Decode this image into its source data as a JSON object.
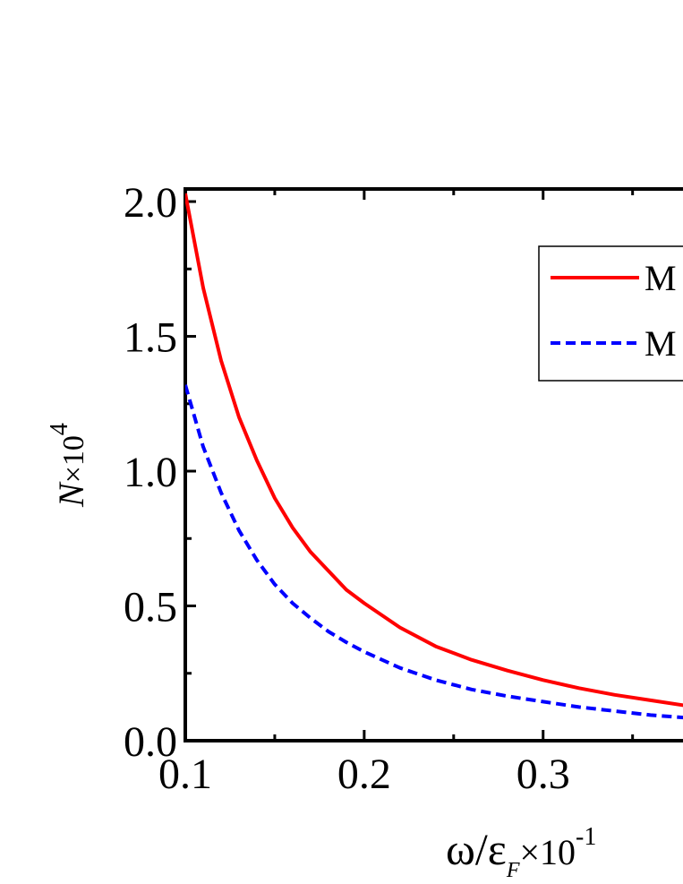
{
  "chart_data": {
    "type": "line",
    "xlabel": {
      "symbol": "ω/ε",
      "subscript": "F",
      "multiplier": "×10",
      "exponent": "-1"
    },
    "ylabel": {
      "symbol": "N",
      "multiplier": "×10",
      "exponent": "4"
    },
    "xlim": [
      0.1,
      0.38
    ],
    "ylim": [
      0.0,
      2.05
    ],
    "x_ticks": [
      {
        "value": 0.1,
        "label": "0.1"
      },
      {
        "value": 0.2,
        "label": "0.2"
      },
      {
        "value": 0.3,
        "label": "0.3"
      }
    ],
    "y_ticks": [
      {
        "value": 0.0,
        "label": "0.0"
      },
      {
        "value": 0.5,
        "label": "0.5"
      },
      {
        "value": 1.0,
        "label": "1.0"
      },
      {
        "value": 1.5,
        "label": "1.5"
      },
      {
        "value": 2.0,
        "label": "2.0"
      }
    ],
    "legend_position": "top-right",
    "series": [
      {
        "name": "M",
        "color": "#ff0000",
        "dash": "solid",
        "x": [
          0.1,
          0.11,
          0.12,
          0.13,
          0.14,
          0.15,
          0.16,
          0.17,
          0.18,
          0.19,
          0.2,
          0.22,
          0.24,
          0.26,
          0.28,
          0.3,
          0.32,
          0.34,
          0.36,
          0.38
        ],
        "y": [
          2.03,
          1.68,
          1.41,
          1.2,
          1.04,
          0.9,
          0.79,
          0.7,
          0.63,
          0.56,
          0.51,
          0.42,
          0.35,
          0.3,
          0.26,
          0.225,
          0.195,
          0.17,
          0.15,
          0.13
        ]
      },
      {
        "name": "M",
        "color": "#0000ff",
        "dash": "dashed",
        "x": [
          0.1,
          0.11,
          0.12,
          0.13,
          0.14,
          0.15,
          0.16,
          0.17,
          0.18,
          0.19,
          0.2,
          0.22,
          0.24,
          0.26,
          0.28,
          0.3,
          0.32,
          0.34,
          0.36,
          0.38
        ],
        "y": [
          1.32,
          1.09,
          0.92,
          0.78,
          0.67,
          0.58,
          0.51,
          0.455,
          0.405,
          0.365,
          0.33,
          0.27,
          0.225,
          0.19,
          0.165,
          0.145,
          0.125,
          0.11,
          0.095,
          0.085
        ]
      }
    ]
  }
}
